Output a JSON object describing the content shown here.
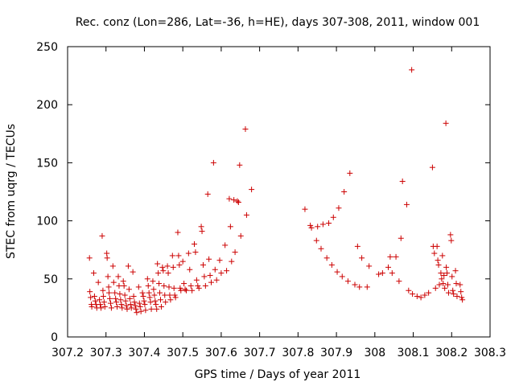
{
  "chart_data": {
    "type": "scatter",
    "title": "Rec. conz (Lon=286, Lat=-36, h=HE), days 307-308, 2011, window 001",
    "xlabel": "GPS time / Days of year 2011",
    "ylabel": "STEC from uqrg / TECUs",
    "xlim": [
      307.2,
      308.3
    ],
    "ylim": [
      0,
      250
    ],
    "xticks": [
      "307.2",
      "307.3",
      "307.4",
      "307.5",
      "307.6",
      "307.7",
      "307.8",
      "307.9",
      "308",
      "308.1",
      "308.2",
      "308.3"
    ],
    "xtick_values": [
      307.2,
      307.3,
      307.4,
      307.5,
      307.6,
      307.7,
      307.8,
      307.9,
      308.0,
      308.1,
      308.2,
      308.3
    ],
    "yticks": [
      "0",
      "50",
      "100",
      "150",
      "200",
      "250"
    ],
    "ytick_values": [
      0,
      50,
      100,
      150,
      200,
      250
    ],
    "marker": "+",
    "color": "#cc0000",
    "series": [
      {
        "name": "STEC",
        "points": [
          [
            307.257,
            68
          ],
          [
            307.258,
            39
          ],
          [
            307.26,
            34
          ],
          [
            307.262,
            28
          ],
          [
            307.263,
            26
          ],
          [
            307.268,
            55
          ],
          [
            307.27,
            35
          ],
          [
            307.272,
            31
          ],
          [
            307.274,
            28
          ],
          [
            307.276,
            25
          ],
          [
            307.28,
            47
          ],
          [
            307.283,
            32
          ],
          [
            307.285,
            28
          ],
          [
            307.287,
            25
          ],
          [
            307.29,
            87
          ],
          [
            307.292,
            40
          ],
          [
            307.293,
            35
          ],
          [
            307.295,
            30
          ],
          [
            307.297,
            26
          ],
          [
            307.302,
            72
          ],
          [
            307.303,
            68
          ],
          [
            307.305,
            52
          ],
          [
            307.307,
            43
          ],
          [
            307.308,
            38
          ],
          [
            307.31,
            33
          ],
          [
            307.312,
            29
          ],
          [
            307.314,
            25
          ],
          [
            307.318,
            61
          ],
          [
            307.32,
            47
          ],
          [
            307.323,
            38
          ],
          [
            307.325,
            33
          ],
          [
            307.327,
            30
          ],
          [
            307.329,
            26
          ],
          [
            307.332,
            52
          ],
          [
            307.334,
            44
          ],
          [
            307.336,
            37
          ],
          [
            307.338,
            32
          ],
          [
            307.34,
            28
          ],
          [
            307.342,
            25
          ],
          [
            307.345,
            48
          ],
          [
            307.347,
            44
          ],
          [
            307.349,
            36
          ],
          [
            307.351,
            31
          ],
          [
            307.353,
            27
          ],
          [
            307.355,
            24
          ],
          [
            307.358,
            61
          ],
          [
            307.36,
            41
          ],
          [
            307.362,
            33
          ],
          [
            307.364,
            28
          ],
          [
            307.366,
            25
          ],
          [
            307.37,
            56
          ],
          [
            307.372,
            35
          ],
          [
            307.374,
            30
          ],
          [
            307.376,
            27
          ],
          [
            307.378,
            24
          ],
          [
            307.38,
            21
          ],
          [
            307.385,
            43
          ],
          [
            307.387,
            29
          ],
          [
            307.389,
            26
          ],
          [
            307.391,
            22
          ],
          [
            307.395,
            38
          ],
          [
            307.397,
            35
          ],
          [
            307.399,
            31
          ],
          [
            307.401,
            28
          ],
          [
            307.403,
            23
          ],
          [
            307.408,
            50
          ],
          [
            307.41,
            44
          ],
          [
            307.412,
            38
          ],
          [
            307.414,
            34
          ],
          [
            307.416,
            30
          ],
          [
            307.418,
            24
          ],
          [
            307.422,
            48
          ],
          [
            307.424,
            41
          ],
          [
            307.426,
            36
          ],
          [
            307.428,
            31
          ],
          [
            307.43,
            28
          ],
          [
            307.432,
            24
          ],
          [
            307.434,
            63
          ],
          [
            307.436,
            55
          ],
          [
            307.438,
            46
          ],
          [
            307.44,
            38
          ],
          [
            307.442,
            32
          ],
          [
            307.444,
            26
          ],
          [
            307.447,
            60
          ],
          [
            307.449,
            57
          ],
          [
            307.451,
            44
          ],
          [
            307.453,
            36
          ],
          [
            307.455,
            30
          ],
          [
            307.46,
            61
          ],
          [
            307.462,
            55
          ],
          [
            307.464,
            43
          ],
          [
            307.466,
            36
          ],
          [
            307.468,
            32
          ],
          [
            307.473,
            70
          ],
          [
            307.475,
            60
          ],
          [
            307.477,
            42
          ],
          [
            307.479,
            36
          ],
          [
            307.481,
            34
          ],
          [
            307.487,
            90
          ],
          [
            307.489,
            70
          ],
          [
            307.491,
            62
          ],
          [
            307.493,
            42
          ],
          [
            307.495,
            40
          ],
          [
            307.5,
            65
          ],
          [
            307.503,
            46
          ],
          [
            307.506,
            41
          ],
          [
            307.509,
            40
          ],
          [
            307.515,
            72
          ],
          [
            307.518,
            58
          ],
          [
            307.521,
            44
          ],
          [
            307.524,
            40
          ],
          [
            307.53,
            80
          ],
          [
            307.533,
            73
          ],
          [
            307.536,
            49
          ],
          [
            307.539,
            44
          ],
          [
            307.542,
            42
          ],
          [
            307.548,
            95
          ],
          [
            307.55,
            91
          ],
          [
            307.553,
            62
          ],
          [
            307.556,
            52
          ],
          [
            307.559,
            44
          ],
          [
            307.565,
            123
          ],
          [
            307.568,
            67
          ],
          [
            307.571,
            53
          ],
          [
            307.574,
            47
          ],
          [
            307.58,
            150
          ],
          [
            307.584,
            58
          ],
          [
            307.588,
            49
          ],
          [
            307.596,
            66
          ],
          [
            307.6,
            55
          ],
          [
            307.61,
            79
          ],
          [
            307.614,
            57
          ],
          [
            307.621,
            119
          ],
          [
            307.624,
            95
          ],
          [
            307.627,
            65
          ],
          [
            307.633,
            118
          ],
          [
            307.636,
            73
          ],
          [
            307.642,
            117
          ],
          [
            307.645,
            116
          ],
          [
            307.648,
            148
          ],
          [
            307.651,
            87
          ],
          [
            307.663,
            179
          ],
          [
            307.666,
            105
          ],
          [
            307.679,
            127
          ],
          [
            307.818,
            110
          ],
          [
            307.832,
            96
          ],
          [
            307.835,
            94
          ],
          [
            307.848,
            83
          ],
          [
            307.851,
            95
          ],
          [
            307.86,
            76
          ],
          [
            307.865,
            97
          ],
          [
            307.875,
            68
          ],
          [
            307.88,
            98
          ],
          [
            307.888,
            62
          ],
          [
            307.892,
            103
          ],
          [
            307.902,
            56
          ],
          [
            307.906,
            111
          ],
          [
            307.915,
            52
          ],
          [
            307.92,
            125
          ],
          [
            307.93,
            48
          ],
          [
            307.935,
            141
          ],
          [
            307.948,
            45
          ],
          [
            307.955,
            78
          ],
          [
            307.96,
            43
          ],
          [
            307.966,
            68
          ],
          [
            307.98,
            43
          ],
          [
            307.985,
            61
          ],
          [
            308.01,
            54
          ],
          [
            308.02,
            55
          ],
          [
            308.035,
            60
          ],
          [
            308.04,
            69
          ],
          [
            308.045,
            55
          ],
          [
            308.055,
            69
          ],
          [
            308.063,
            48
          ],
          [
            308.068,
            85
          ],
          [
            308.072,
            134
          ],
          [
            308.083,
            114
          ],
          [
            308.088,
            40
          ],
          [
            308.096,
            230
          ],
          [
            308.098,
            37
          ],
          [
            308.11,
            35
          ],
          [
            308.12,
            34
          ],
          [
            308.13,
            36
          ],
          [
            308.14,
            38
          ],
          [
            308.15,
            146
          ],
          [
            308.152,
            78
          ],
          [
            308.155,
            72
          ],
          [
            308.158,
            42
          ],
          [
            308.162,
            78
          ],
          [
            308.164,
            66
          ],
          [
            308.166,
            62
          ],
          [
            308.168,
            45
          ],
          [
            308.172,
            55
          ],
          [
            308.174,
            50
          ],
          [
            308.176,
            70
          ],
          [
            308.178,
            46
          ],
          [
            308.18,
            53
          ],
          [
            308.182,
            42
          ],
          [
            308.185,
            184
          ],
          [
            308.186,
            60
          ],
          [
            308.188,
            55
          ],
          [
            308.19,
            45
          ],
          [
            308.192,
            38
          ],
          [
            308.197,
            88
          ],
          [
            308.199,
            83
          ],
          [
            308.201,
            52
          ],
          [
            308.203,
            40
          ],
          [
            308.205,
            37
          ],
          [
            308.21,
            57
          ],
          [
            308.212,
            46
          ],
          [
            308.214,
            35
          ],
          [
            308.222,
            45
          ],
          [
            308.224,
            39
          ],
          [
            308.226,
            34
          ],
          [
            308.228,
            32
          ]
        ]
      }
    ]
  }
}
